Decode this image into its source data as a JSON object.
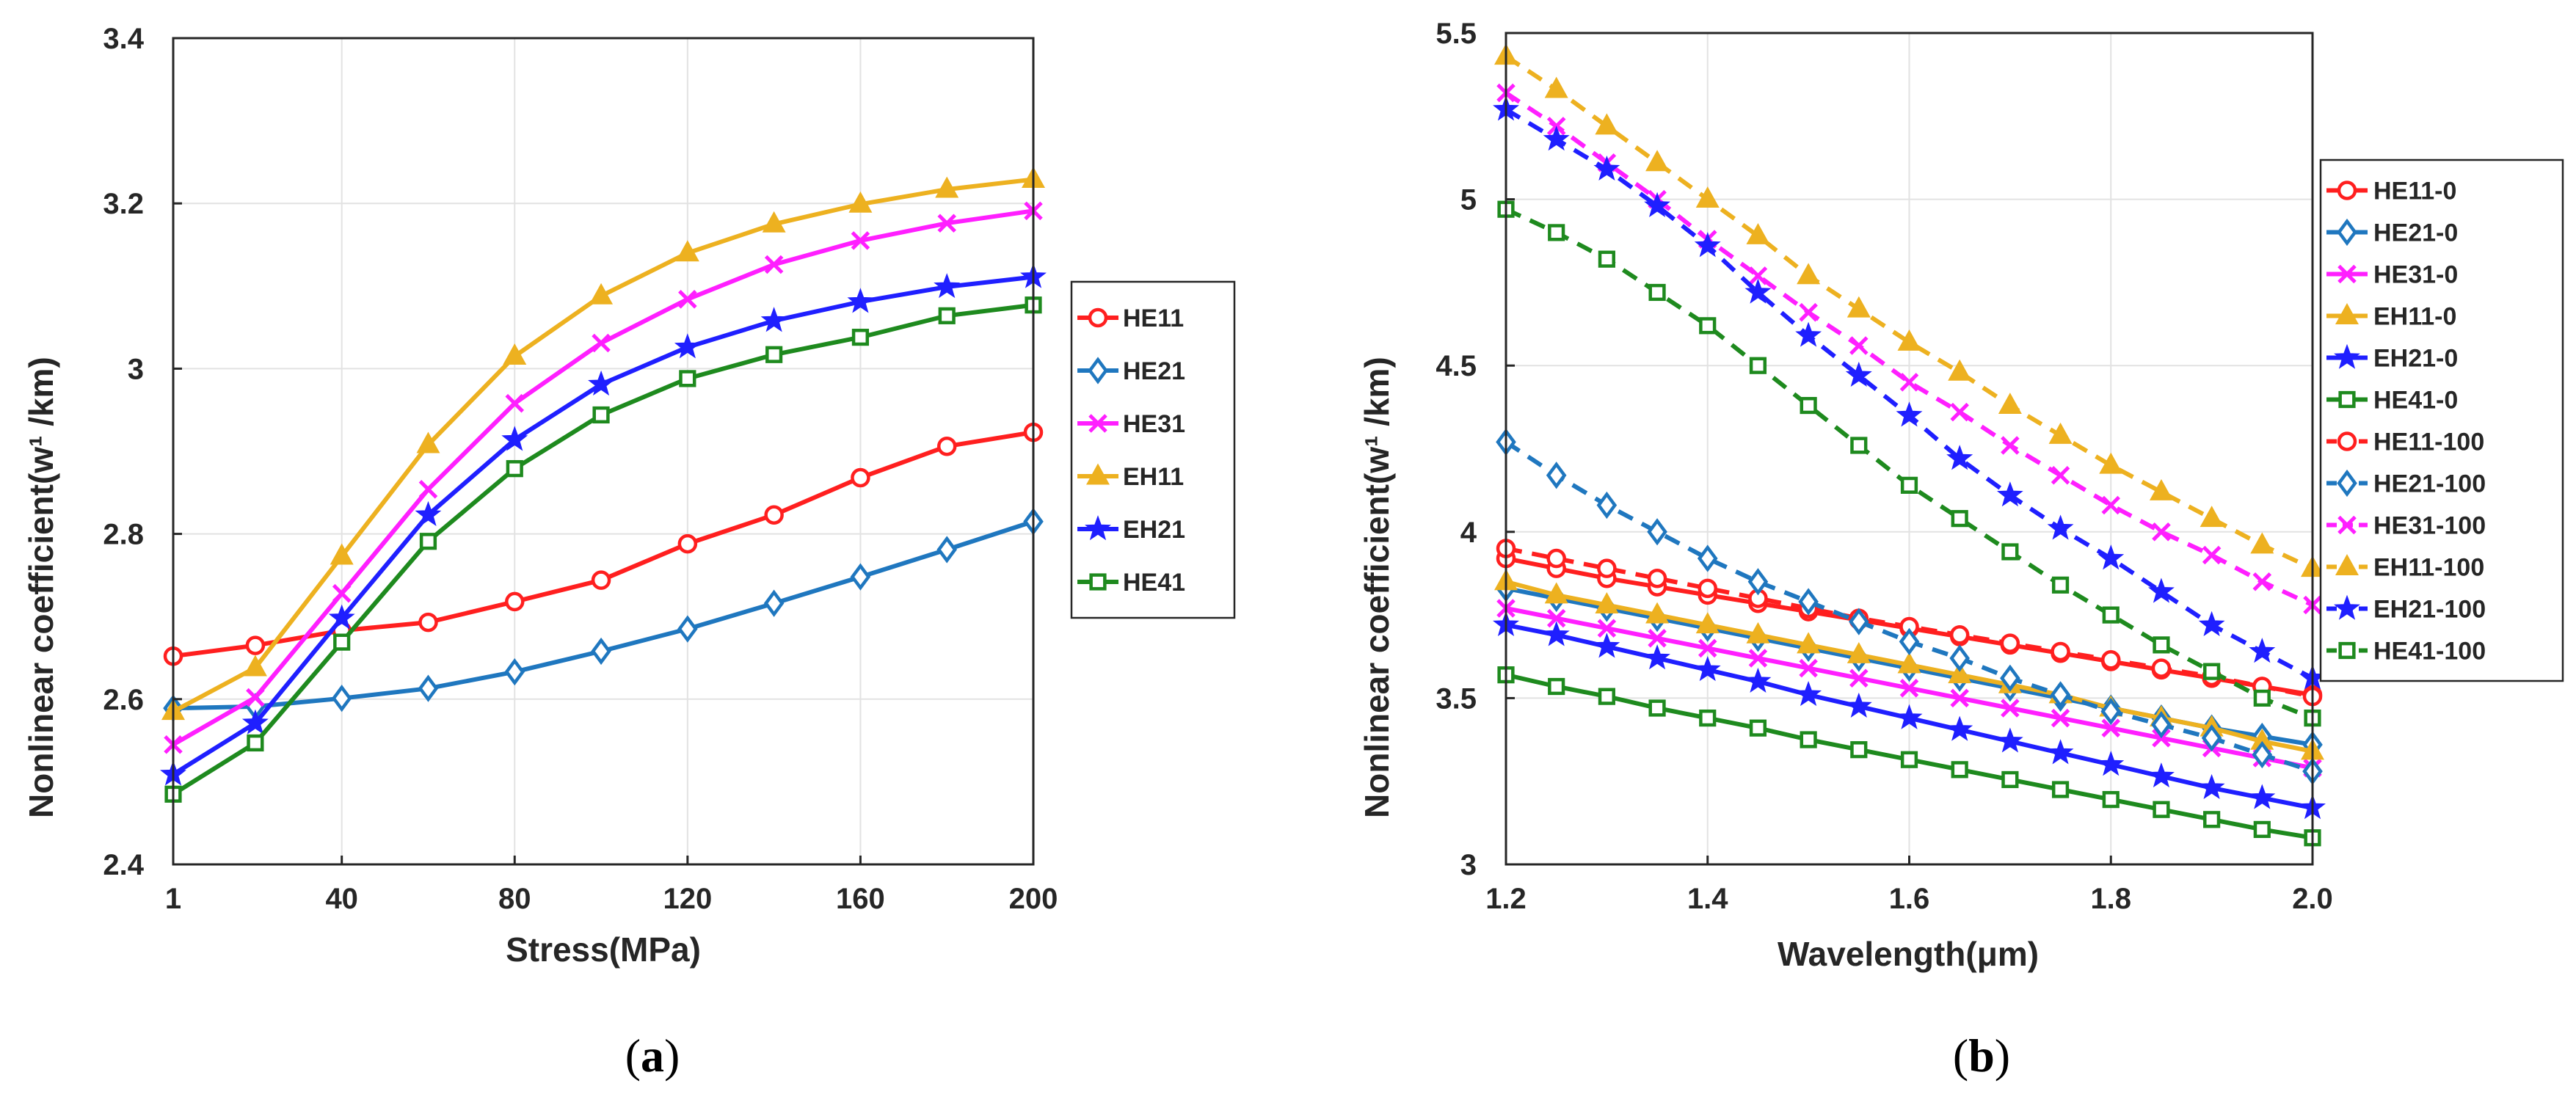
{
  "panels": [
    {
      "label_open": "(",
      "label_letter": "a",
      "label_close": ")"
    },
    {
      "label_open": "(",
      "label_letter": "b",
      "label_close": ")"
    }
  ],
  "chart_data": [
    {
      "type": "line",
      "xlabel": "Stress(MPa)",
      "ylabel": "Nonlinear coefficient(w",
      "ylabel_clipped_tail": "¹ /km)",
      "xlim": [
        1,
        200
      ],
      "ylim": [
        2.4,
        3.4
      ],
      "xticks": [
        1,
        40,
        80,
        120,
        160,
        200
      ],
      "xtick_labels": [
        "1",
        "40",
        "80",
        "120",
        "160",
        "200"
      ],
      "yticks": [
        2.4,
        2.6,
        2.8,
        3.0,
        3.2,
        3.4
      ],
      "ytick_labels": [
        "2.4",
        "2.6",
        "2.8",
        "3",
        "3.2",
        "3.4"
      ],
      "grid": true,
      "legend_position": "right-middle",
      "x": [
        1,
        20,
        40,
        60,
        80,
        100,
        120,
        140,
        160,
        180,
        200
      ],
      "series": [
        {
          "name": "HE11",
          "color": "#ff1f1f",
          "marker": "circle",
          "dash": false,
          "values": [
            2.652,
            2.665,
            2.683,
            2.693,
            2.718,
            2.744,
            2.788,
            2.823,
            2.868,
            2.906,
            2.923
          ]
        },
        {
          "name": "HE21",
          "color": "#1f77bf",
          "marker": "diamond",
          "dash": false,
          "values": [
            2.589,
            2.591,
            2.601,
            2.613,
            2.633,
            2.658,
            2.685,
            2.716,
            2.748,
            2.781,
            2.815
          ]
        },
        {
          "name": "HE31",
          "color": "#ff1fff",
          "marker": "x",
          "dash": false,
          "values": [
            2.545,
            2.602,
            2.728,
            2.854,
            2.958,
            3.031,
            3.084,
            3.126,
            3.155,
            3.176,
            3.191
          ]
        },
        {
          "name": "EH11",
          "color": "#edb120",
          "marker": "triangle",
          "dash": false,
          "values": [
            2.585,
            2.638,
            2.773,
            2.908,
            3.015,
            3.088,
            3.14,
            3.175,
            3.199,
            3.217,
            3.229
          ]
        },
        {
          "name": "EH21",
          "color": "#1f1fff",
          "marker": "star",
          "dash": false,
          "values": [
            2.509,
            2.571,
            2.698,
            2.823,
            2.914,
            2.981,
            3.026,
            3.058,
            3.081,
            3.099,
            3.111
          ]
        },
        {
          "name": "HE41",
          "color": "#1e8a1e",
          "marker": "square",
          "dash": false,
          "values": [
            2.485,
            2.547,
            2.669,
            2.791,
            2.879,
            2.944,
            2.988,
            3.017,
            3.038,
            3.064,
            3.077
          ]
        }
      ]
    },
    {
      "type": "line",
      "xlabel": "Wavelength(μm)",
      "ylabel": "Nonlinear coefficient(w",
      "ylabel_clipped_tail": "¹ /km)",
      "xlim": [
        1.2,
        2.0
      ],
      "ylim": [
        3,
        5.5
      ],
      "xticks": [
        1.2,
        1.4,
        1.6,
        1.8,
        2.0
      ],
      "xtick_labels": [
        "1.2",
        "1.4",
        "1.6",
        "1.8",
        "2.0"
      ],
      "yticks": [
        3,
        3.5,
        4,
        4.5,
        5,
        5.5
      ],
      "ytick_labels": [
        "3",
        "3.5",
        "4",
        "4.5",
        "5",
        "5.5"
      ],
      "grid": true,
      "legend_position": "right-outside",
      "x": [
        1.2,
        1.25,
        1.3,
        1.35,
        1.4,
        1.45,
        1.5,
        1.55,
        1.6,
        1.65,
        1.7,
        1.75,
        1.8,
        1.85,
        1.9,
        1.95,
        2.0
      ],
      "series": [
        {
          "name": "HE11-0",
          "color": "#ff1f1f",
          "marker": "circle",
          "dash": false,
          "values": [
            3.92,
            3.89,
            3.86,
            3.835,
            3.81,
            3.785,
            3.76,
            3.735,
            3.71,
            3.685,
            3.66,
            3.635,
            3.61,
            3.585,
            3.56,
            3.535,
            3.51
          ]
        },
        {
          "name": "HE21-0",
          "color": "#1f77bf",
          "marker": "diamond",
          "dash": false,
          "values": [
            3.83,
            3.8,
            3.77,
            3.74,
            3.71,
            3.68,
            3.65,
            3.62,
            3.59,
            3.56,
            3.53,
            3.5,
            3.47,
            3.44,
            3.41,
            3.385,
            3.36
          ]
        },
        {
          "name": "HE31-0",
          "color": "#ff1fff",
          "marker": "x",
          "dash": false,
          "values": [
            3.77,
            3.74,
            3.71,
            3.68,
            3.65,
            3.62,
            3.59,
            3.56,
            3.53,
            3.5,
            3.47,
            3.44,
            3.41,
            3.38,
            3.35,
            3.32,
            3.29
          ]
        },
        {
          "name": "EH11-0",
          "color": "#edb120",
          "marker": "triangle",
          "dash": false,
          "values": [
            3.85,
            3.81,
            3.78,
            3.75,
            3.72,
            3.69,
            3.66,
            3.63,
            3.6,
            3.57,
            3.54,
            3.51,
            3.47,
            3.44,
            3.41,
            3.37,
            3.34
          ]
        },
        {
          "name": "EH21-0",
          "color": "#1f1fff",
          "marker": "star",
          "dash": false,
          "values": [
            3.72,
            3.69,
            3.655,
            3.62,
            3.585,
            3.55,
            3.51,
            3.475,
            3.44,
            3.405,
            3.37,
            3.335,
            3.3,
            3.265,
            3.23,
            3.2,
            3.17
          ]
        },
        {
          "name": "HE41-0",
          "color": "#1e8a1e",
          "marker": "square",
          "dash": false,
          "values": [
            3.57,
            3.535,
            3.505,
            3.47,
            3.44,
            3.41,
            3.375,
            3.345,
            3.315,
            3.285,
            3.255,
            3.225,
            3.195,
            3.165,
            3.135,
            3.105,
            3.08
          ]
        },
        {
          "name": "HE11-100",
          "color": "#ff1f1f",
          "marker": "circle",
          "dash": true,
          "values": [
            3.95,
            3.92,
            3.89,
            3.86,
            3.83,
            3.8,
            3.77,
            3.74,
            3.715,
            3.69,
            3.665,
            3.64,
            3.615,
            3.59,
            3.565,
            3.535,
            3.505
          ]
        },
        {
          "name": "HE21-100",
          "color": "#1f77bf",
          "marker": "diamond",
          "dash": true,
          "values": [
            4.27,
            4.17,
            4.08,
            4.0,
            3.92,
            3.85,
            3.79,
            3.73,
            3.67,
            3.62,
            3.56,
            3.51,
            3.46,
            3.42,
            3.38,
            3.33,
            3.28
          ]
        },
        {
          "name": "HE31-100",
          "color": "#ff1fff",
          "marker": "x",
          "dash": true,
          "values": [
            5.32,
            5.22,
            5.11,
            5.0,
            4.88,
            4.77,
            4.66,
            4.56,
            4.45,
            4.36,
            4.26,
            4.17,
            4.08,
            4.0,
            3.93,
            3.85,
            3.78
          ]
        },
        {
          "name": "EH11-100",
          "color": "#edb120",
          "marker": "triangle",
          "dash": true,
          "values": [
            5.43,
            5.33,
            5.22,
            5.11,
            5.0,
            4.89,
            4.77,
            4.67,
            4.57,
            4.48,
            4.38,
            4.29,
            4.2,
            4.12,
            4.04,
            3.96,
            3.89
          ]
        },
        {
          "name": "EH21-100",
          "color": "#1f1fff",
          "marker": "star",
          "dash": true,
          "values": [
            5.27,
            5.18,
            5.09,
            4.98,
            4.86,
            4.72,
            4.59,
            4.47,
            4.35,
            4.22,
            4.11,
            4.01,
            3.92,
            3.82,
            3.72,
            3.64,
            3.56
          ]
        },
        {
          "name": "HE41-100",
          "color": "#1e8a1e",
          "marker": "square",
          "dash": true,
          "values": [
            4.97,
            4.9,
            4.82,
            4.72,
            4.62,
            4.5,
            4.38,
            4.26,
            4.14,
            4.04,
            3.94,
            3.84,
            3.75,
            3.66,
            3.58,
            3.5,
            3.44
          ]
        }
      ]
    }
  ]
}
